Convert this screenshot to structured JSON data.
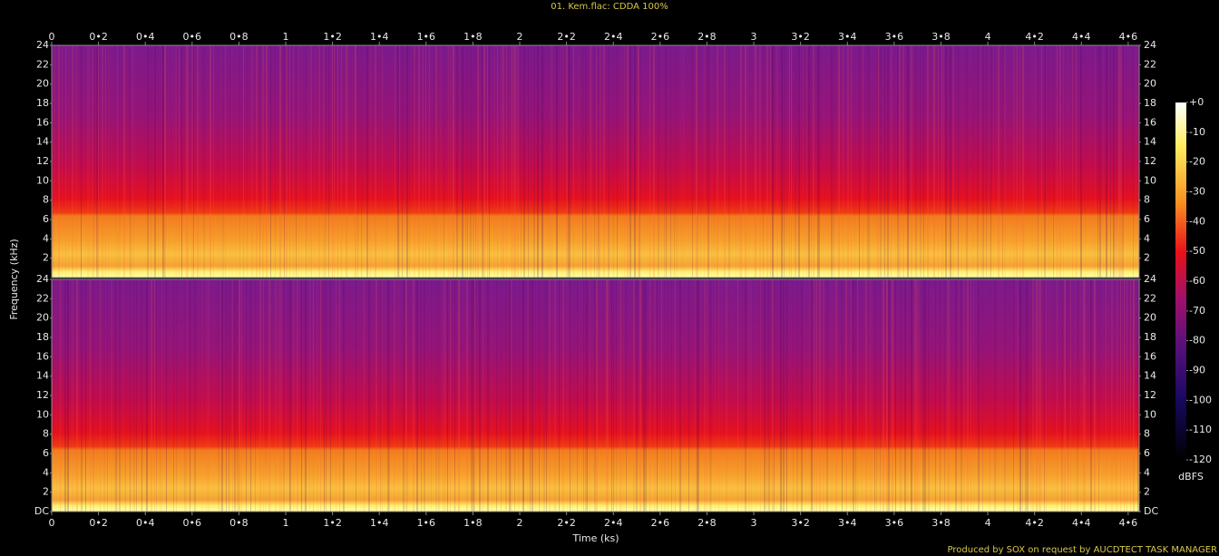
{
  "chart_data": {
    "type": "spectrogram",
    "title": "01. Kem.flac: CDDA 100%",
    "xlabel": "Time (ks)",
    "ylabel": "Frequency (kHz)",
    "xlim": [
      0,
      4.647
    ],
    "xticks": [
      0,
      {
        "value": 0.2,
        "label": "0•2"
      },
      {
        "value": 0.4,
        "label": "0•4"
      },
      {
        "value": 0.6,
        "label": "0•6"
      },
      {
        "value": 0.8,
        "label": "0•8"
      },
      1,
      {
        "value": 1.2,
        "label": "1•2"
      },
      {
        "value": 1.4,
        "label": "1•4"
      },
      {
        "value": 1.6,
        "label": "1•6"
      },
      {
        "value": 1.8,
        "label": "1•8"
      },
      2,
      {
        "value": 2.2,
        "label": "2•2"
      },
      {
        "value": 2.4,
        "label": "2•4"
      },
      {
        "value": 2.6,
        "label": "2•6"
      },
      {
        "value": 2.8,
        "label": "2•8"
      },
      3,
      {
        "value": 3.2,
        "label": "3•2"
      },
      {
        "value": 3.4,
        "label": "3•4"
      },
      {
        "value": 3.6,
        "label": "3•6"
      },
      {
        "value": 3.8,
        "label": "3•8"
      },
      4,
      {
        "value": 4.2,
        "label": "4•2"
      },
      {
        "value": 4.4,
        "label": "4•4"
      },
      {
        "value": 4.6,
        "label": "4•6"
      }
    ],
    "channels": [
      {
        "ylim": [
          0,
          24
        ],
        "yticks": [
          2,
          4,
          6,
          8,
          10,
          12,
          14,
          16,
          18,
          20,
          22,
          24
        ]
      },
      {
        "ylim": [
          0,
          24
        ],
        "yticks": [
          {
            "value": 0,
            "label": "DC"
          },
          2,
          4,
          6,
          8,
          10,
          12,
          14,
          16,
          18,
          20,
          22,
          24
        ]
      }
    ],
    "colorbar": {
      "label": "dBFS",
      "lim": [
        -120,
        0
      ],
      "ticks": [
        {
          "value": 0,
          "label": "+0"
        },
        -10,
        -20,
        -30,
        -40,
        -50,
        -60,
        -70,
        -80,
        -90,
        -100,
        -110,
        -120
      ]
    },
    "footer": "Produced by SOX on request by AUCDTECT TASK MANAGER"
  }
}
